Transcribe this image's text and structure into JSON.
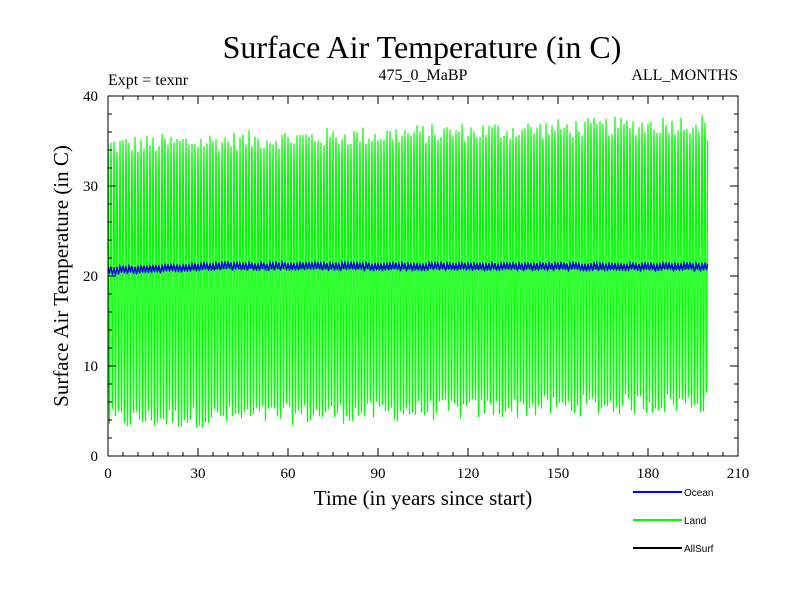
{
  "chart_data": {
    "type": "line",
    "title": "Surface Air Temperature (in C)",
    "subtitle_left": "Expt = texnr",
    "subtitle_center": "475_0_MaBP",
    "subtitle_right": "ALL_MONTHS",
    "xlabel": "Time (in years since start)",
    "ylabel": "Surface Air Temperature (in C)",
    "xlim": [
      0,
      210
    ],
    "ylim": [
      0,
      40
    ],
    "x_ticks": [
      0,
      30,
      60,
      90,
      120,
      150,
      180,
      210
    ],
    "y_ticks": [
      0,
      10,
      20,
      30,
      40
    ],
    "legend_position": "bottom-right outside plot",
    "series": [
      {
        "name": "Ocean",
        "color": "#0000ff",
        "description_values": "monthly, oscillates ~20.2–21.8",
        "mean_start": 20.6,
        "mean_mid": 21.1,
        "mean_end": 21.0,
        "amplitude": 0.35,
        "x_start": 0,
        "x_end": 200
      },
      {
        "name": "Land",
        "color": "#00ff00",
        "mean": 19.5,
        "max_start": 34.5,
        "max_end": 37.0,
        "min_start": 4.0,
        "min_end": 6.0,
        "x_start": 0,
        "x_end": 200
      },
      {
        "name": "AllSurf",
        "color": "#000000",
        "mean": 20.9,
        "x_start": 0,
        "x_end": 200
      }
    ]
  }
}
